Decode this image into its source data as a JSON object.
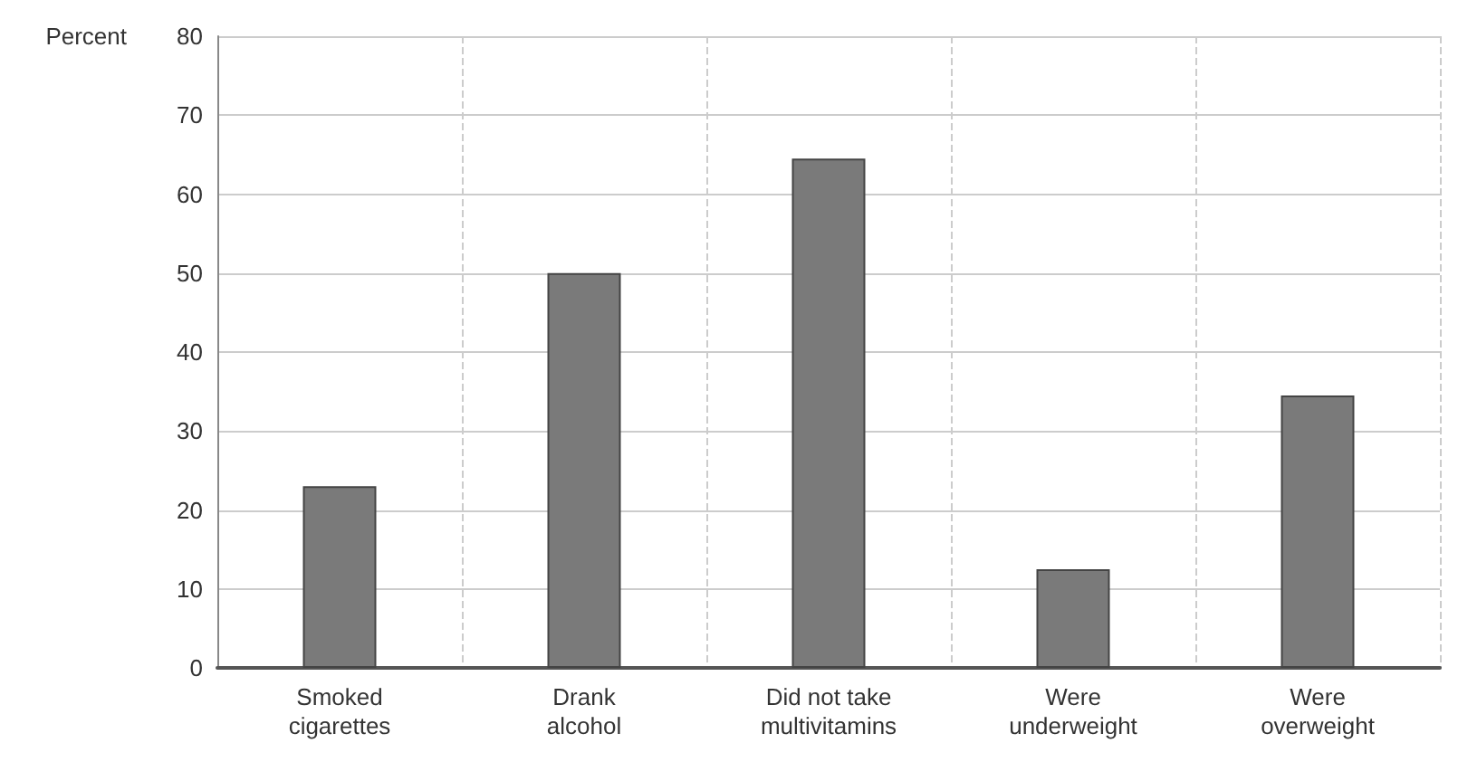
{
  "chart_data": {
    "type": "bar",
    "ylabel": "Percent",
    "categories": [
      "Smoked\ncigarettes",
      "Drank\nalcohol",
      "Did not take\nmultivitamins",
      "Were\nunderweight",
      "Were\noverweight"
    ],
    "values": [
      23,
      50,
      64.5,
      12.5,
      34.5
    ],
    "color": "#7a7a7a",
    "ylim": [
      0,
      80
    ],
    "yticks": [
      0,
      10,
      20,
      30,
      40,
      50,
      60,
      70,
      80
    ],
    "grid": true
  }
}
